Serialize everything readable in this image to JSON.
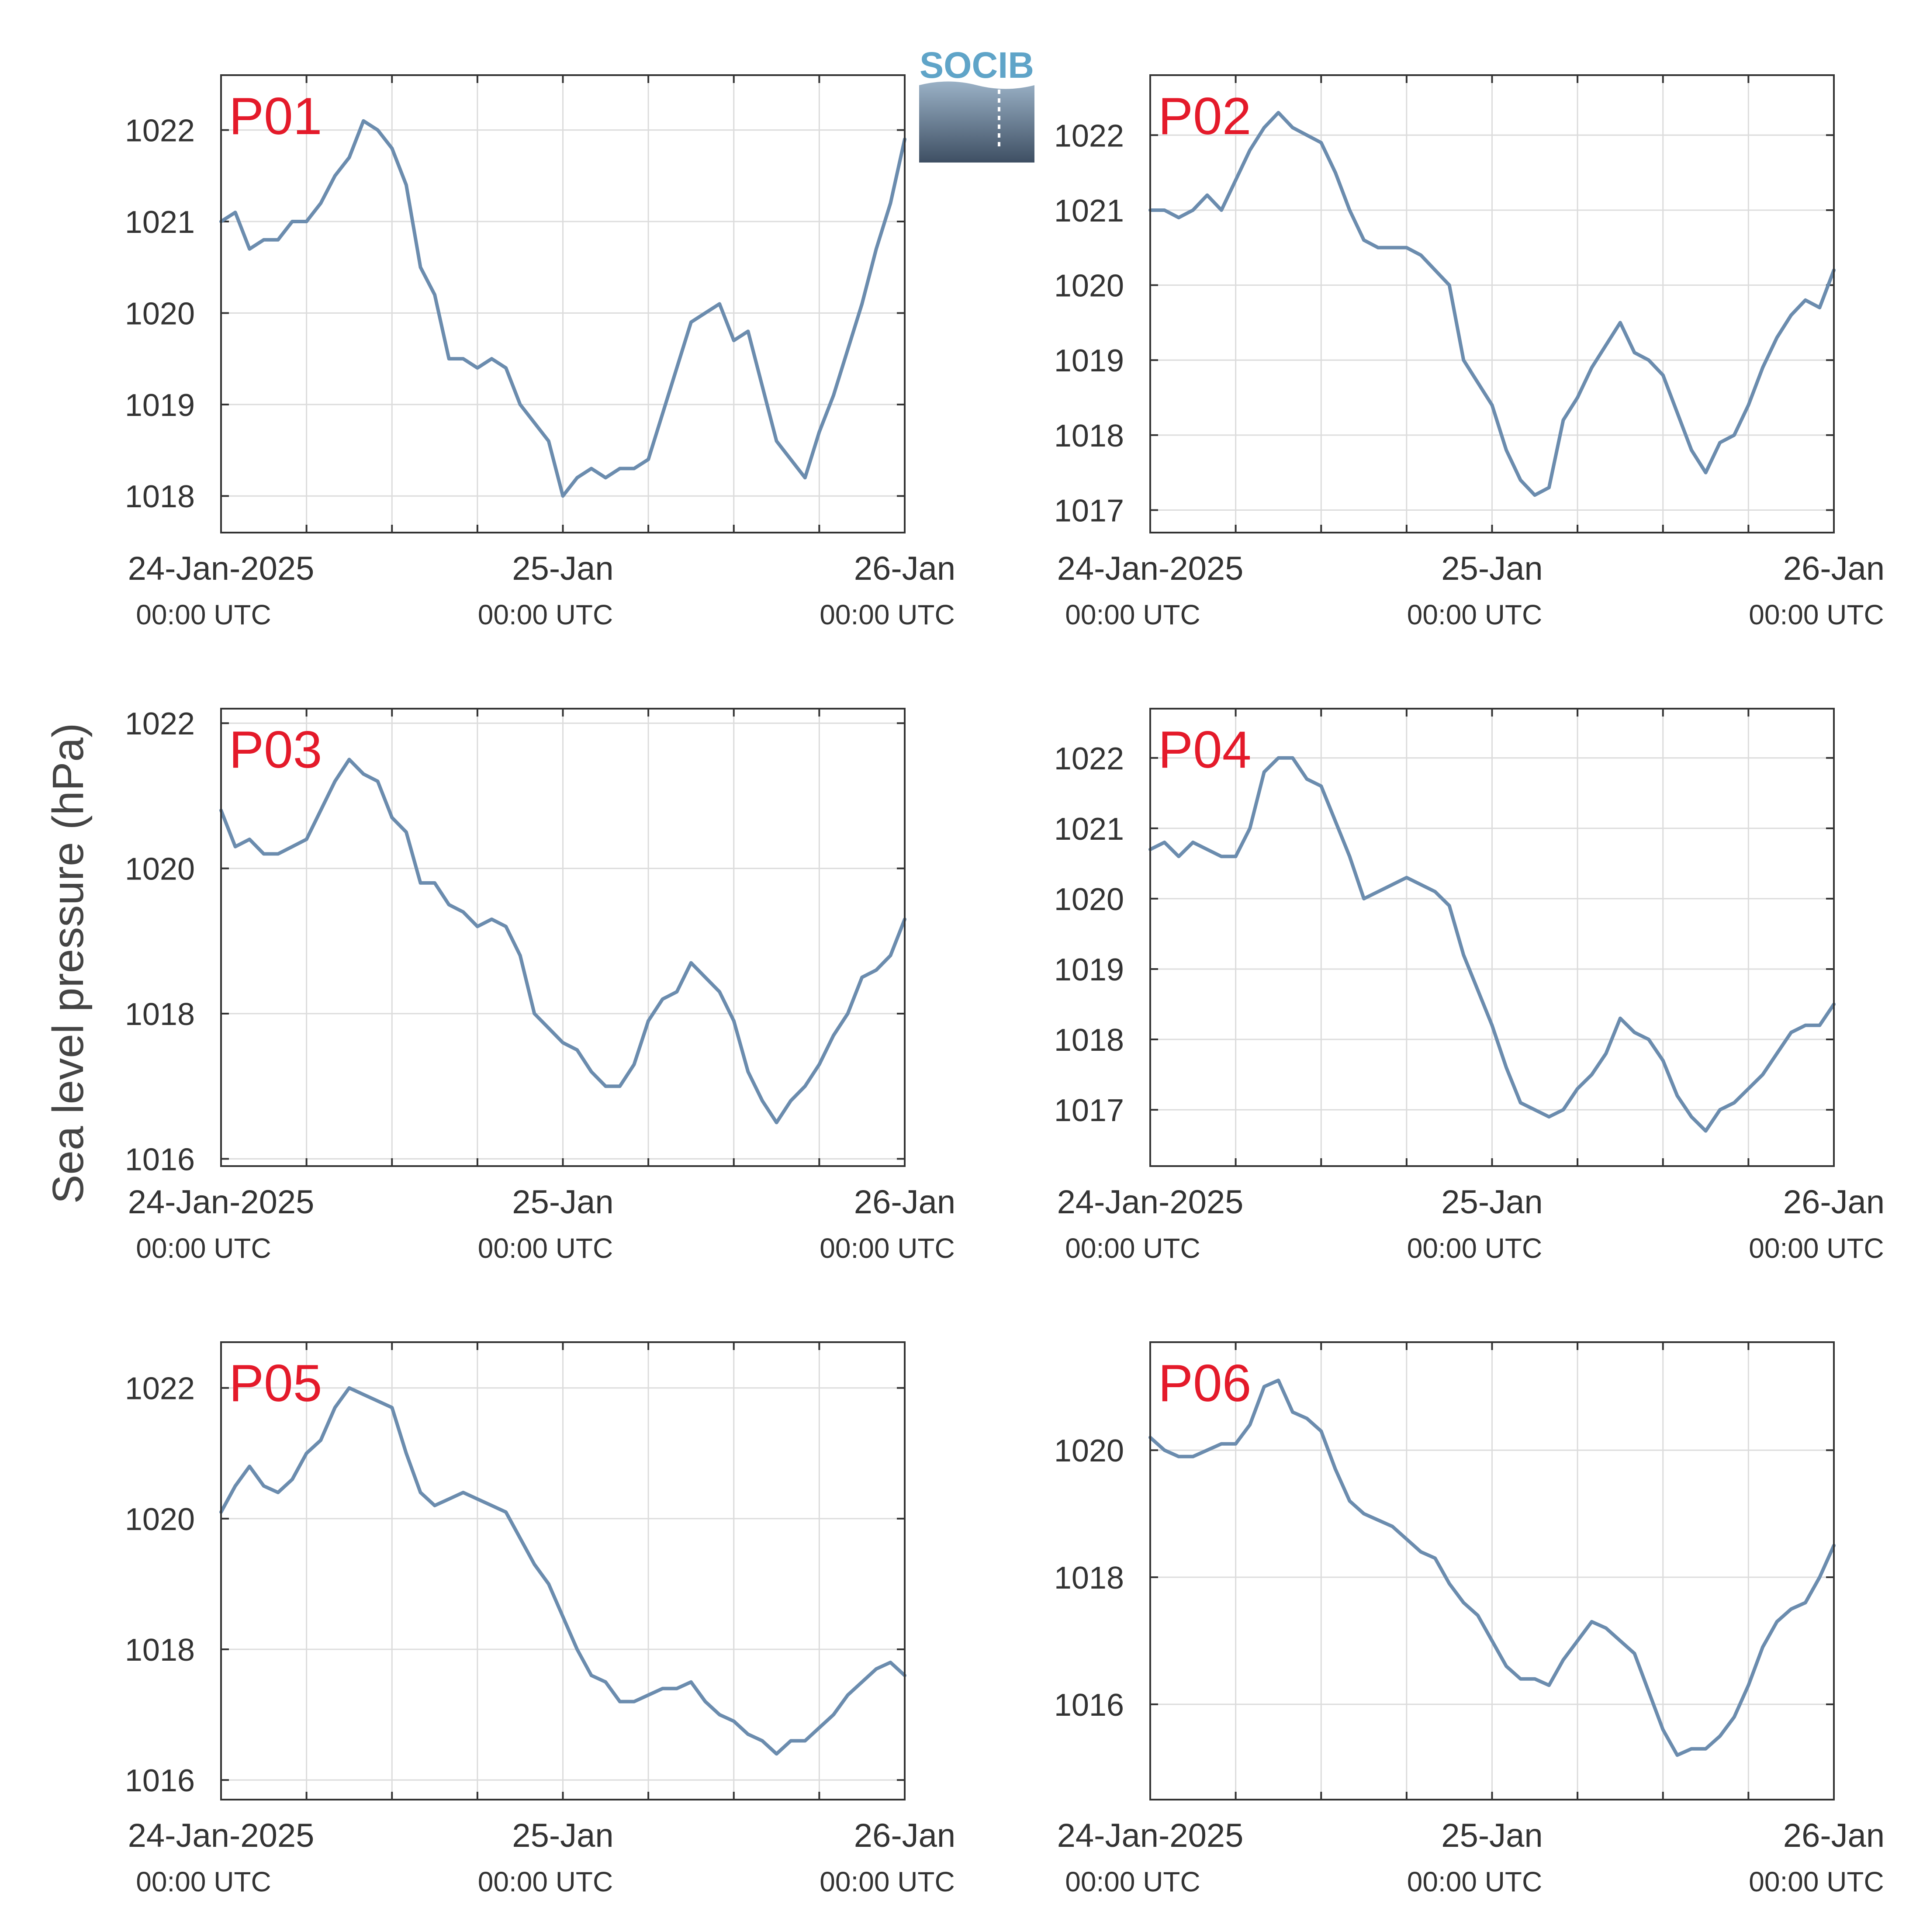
{
  "figure": {
    "ylabel": "Sea level pressure (hPa)",
    "logo_text": "SOCIB",
    "line_color": "#6b8cae",
    "title_color": "#e41a2a",
    "x_tick_dates": [
      "24-Jan-2025",
      "25-Jan",
      "26-Jan"
    ],
    "x_tick_times": [
      "00:00 UTC",
      "00:00 UTC",
      "00:00 UTC"
    ]
  },
  "chart_data": [
    {
      "type": "line",
      "title": "P01",
      "xlabel": "",
      "ylabel": "Sea level pressure (hPa)",
      "x_unit": "hours since 24-Jan-2025 00:00 UTC",
      "xlim": [
        0,
        48
      ],
      "ylim": [
        1017.6,
        1022.6
      ],
      "yticks": [
        1018,
        1019,
        1020,
        1021,
        1022
      ],
      "x": [
        0,
        1,
        2,
        3,
        4,
        5,
        6,
        7,
        8,
        9,
        10,
        11,
        12,
        13,
        14,
        15,
        16,
        17,
        18,
        19,
        20,
        21,
        22,
        23,
        24,
        25,
        26,
        27,
        28,
        29,
        30,
        31,
        32,
        33,
        34,
        35,
        36,
        37,
        38,
        39,
        40,
        41,
        42,
        43,
        44,
        45,
        46,
        47,
        48
      ],
      "y": [
        1021.0,
        1021.1,
        1020.7,
        1020.8,
        1020.8,
        1021.0,
        1021.0,
        1021.2,
        1021.5,
        1021.7,
        1022.1,
        1022.0,
        1021.8,
        1021.4,
        1020.5,
        1020.2,
        1019.5,
        1019.5,
        1019.4,
        1019.5,
        1019.4,
        1019.0,
        1018.8,
        1018.6,
        1018.0,
        1018.2,
        1018.3,
        1018.2,
        1018.3,
        1018.3,
        1018.4,
        1018.9,
        1019.4,
        1019.9,
        1020.0,
        1020.1,
        1019.7,
        1019.8,
        1019.2,
        1018.6,
        1018.4,
        1018.2,
        1018.7,
        1019.1,
        1019.6,
        1020.1,
        1020.7,
        1021.2,
        1021.9
      ],
      "grid": true,
      "legend": "none"
    },
    {
      "type": "line",
      "title": "P02",
      "xlabel": "",
      "ylabel": "",
      "x_unit": "hours since 24-Jan-2025 00:00 UTC",
      "xlim": [
        0,
        48
      ],
      "ylim": [
        1016.7,
        1022.8
      ],
      "yticks": [
        1017,
        1018,
        1019,
        1020,
        1021,
        1022
      ],
      "x": [
        0,
        1,
        2,
        3,
        4,
        5,
        6,
        7,
        8,
        9,
        10,
        11,
        12,
        13,
        14,
        15,
        16,
        17,
        18,
        19,
        20,
        21,
        22,
        23,
        24,
        25,
        26,
        27,
        28,
        29,
        30,
        31,
        32,
        33,
        34,
        35,
        36,
        37,
        38,
        39,
        40,
        41,
        42,
        43,
        44,
        45,
        46,
        47,
        48
      ],
      "y": [
        1021.0,
        1021.0,
        1020.9,
        1021.0,
        1021.2,
        1021.0,
        1021.4,
        1021.8,
        1022.1,
        1022.3,
        1022.1,
        1022.0,
        1021.9,
        1021.5,
        1021.0,
        1020.6,
        1020.5,
        1020.5,
        1020.5,
        1020.4,
        1020.2,
        1020.0,
        1019.0,
        1018.7,
        1018.4,
        1017.8,
        1017.4,
        1017.2,
        1017.3,
        1018.2,
        1018.5,
        1018.9,
        1019.2,
        1019.5,
        1019.1,
        1019.0,
        1018.8,
        1018.3,
        1017.8,
        1017.5,
        1017.9,
        1018.0,
        1018.4,
        1018.9,
        1019.3,
        1019.6,
        1019.8,
        1019.7,
        1020.2
      ],
      "grid": true,
      "legend": "none"
    },
    {
      "type": "line",
      "title": "P03",
      "xlabel": "",
      "ylabel": "",
      "x_unit": "hours since 24-Jan-2025 00:00 UTC",
      "xlim": [
        0,
        48
      ],
      "ylim": [
        1015.9,
        1022.2
      ],
      "yticks": [
        1016,
        1018,
        1020,
        1022
      ],
      "x": [
        0,
        1,
        2,
        3,
        4,
        5,
        6,
        7,
        8,
        9,
        10,
        11,
        12,
        13,
        14,
        15,
        16,
        17,
        18,
        19,
        20,
        21,
        22,
        23,
        24,
        25,
        26,
        27,
        28,
        29,
        30,
        31,
        32,
        33,
        34,
        35,
        36,
        37,
        38,
        39,
        40,
        41,
        42,
        43,
        44,
        45,
        46,
        47,
        48
      ],
      "y": [
        1020.8,
        1020.3,
        1020.4,
        1020.2,
        1020.2,
        1020.3,
        1020.4,
        1020.8,
        1021.2,
        1021.5,
        1021.3,
        1021.2,
        1020.7,
        1020.5,
        1019.8,
        1019.8,
        1019.5,
        1019.4,
        1019.2,
        1019.3,
        1019.2,
        1018.8,
        1018.0,
        1017.8,
        1017.6,
        1017.5,
        1017.2,
        1017.0,
        1017.0,
        1017.3,
        1017.9,
        1018.2,
        1018.3,
        1018.7,
        1018.5,
        1018.3,
        1017.9,
        1017.2,
        1016.8,
        1016.5,
        1016.8,
        1017.0,
        1017.3,
        1017.7,
        1018.0,
        1018.5,
        1018.6,
        1018.8,
        1019.3
      ],
      "grid": true,
      "legend": "none"
    },
    {
      "type": "line",
      "title": "P04",
      "xlabel": "",
      "ylabel": "",
      "x_unit": "hours since 24-Jan-2025 00:00 UTC",
      "xlim": [
        0,
        48
      ],
      "ylim": [
        1016.2,
        1022.7
      ],
      "yticks": [
        1017,
        1018,
        1019,
        1020,
        1021,
        1022
      ],
      "x": [
        0,
        1,
        2,
        3,
        4,
        5,
        6,
        7,
        8,
        9,
        10,
        11,
        12,
        13,
        14,
        15,
        16,
        17,
        18,
        19,
        20,
        21,
        22,
        23,
        24,
        25,
        26,
        27,
        28,
        29,
        30,
        31,
        32,
        33,
        34,
        35,
        36,
        37,
        38,
        39,
        40,
        41,
        42,
        43,
        44,
        45,
        46,
        47,
        48
      ],
      "y": [
        1020.7,
        1020.8,
        1020.6,
        1020.8,
        1020.7,
        1020.6,
        1020.6,
        1021.0,
        1021.8,
        1022.0,
        1022.0,
        1021.7,
        1021.6,
        1021.1,
        1020.6,
        1020.0,
        1020.1,
        1020.2,
        1020.3,
        1020.2,
        1020.1,
        1019.9,
        1019.2,
        1018.7,
        1018.2,
        1017.6,
        1017.1,
        1017.0,
        1016.9,
        1017.0,
        1017.3,
        1017.5,
        1017.8,
        1018.3,
        1018.1,
        1018.0,
        1017.7,
        1017.2,
        1016.9,
        1016.7,
        1017.0,
        1017.1,
        1017.3,
        1017.5,
        1017.8,
        1018.1,
        1018.2,
        1018.2,
        1018.5
      ],
      "grid": true,
      "legend": "none"
    },
    {
      "type": "line",
      "title": "P05",
      "xlabel": "",
      "ylabel": "",
      "x_unit": "hours since 24-Jan-2025 00:00 UTC",
      "xlim": [
        0,
        48
      ],
      "ylim": [
        1015.7,
        1022.7
      ],
      "yticks": [
        1016,
        1018,
        1020,
        1022
      ],
      "x": [
        0,
        1,
        2,
        3,
        4,
        5,
        6,
        7,
        8,
        9,
        10,
        11,
        12,
        13,
        14,
        15,
        16,
        17,
        18,
        19,
        20,
        21,
        22,
        23,
        24,
        25,
        26,
        27,
        28,
        29,
        30,
        31,
        32,
        33,
        34,
        35,
        36,
        37,
        38,
        39,
        40,
        41,
        42,
        43,
        44,
        45,
        46,
        47,
        48
      ],
      "y": [
        1020.1,
        1020.5,
        1020.8,
        1020.5,
        1020.4,
        1020.6,
        1021.0,
        1021.2,
        1021.7,
        1022.0,
        1021.9,
        1021.8,
        1021.7,
        1021.0,
        1020.4,
        1020.2,
        1020.3,
        1020.4,
        1020.3,
        1020.2,
        1020.1,
        1019.7,
        1019.3,
        1019.0,
        1018.5,
        1018.0,
        1017.6,
        1017.5,
        1017.2,
        1017.2,
        1017.3,
        1017.4,
        1017.4,
        1017.5,
        1017.2,
        1017.0,
        1016.9,
        1016.7,
        1016.6,
        1016.4,
        1016.6,
        1016.6,
        1016.8,
        1017.0,
        1017.3,
        1017.5,
        1017.7,
        1017.8,
        1017.6
      ],
      "grid": true,
      "legend": "none"
    },
    {
      "type": "line",
      "title": "P06",
      "xlabel": "",
      "ylabel": "",
      "x_unit": "hours since 24-Jan-2025 00:00 UTC",
      "xlim": [
        0,
        48
      ],
      "ylim": [
        1014.5,
        1021.7
      ],
      "yticks": [
        1016,
        1018,
        1020
      ],
      "x": [
        0,
        1,
        2,
        3,
        4,
        5,
        6,
        7,
        8,
        9,
        10,
        11,
        12,
        13,
        14,
        15,
        16,
        17,
        18,
        19,
        20,
        21,
        22,
        23,
        24,
        25,
        26,
        27,
        28,
        29,
        30,
        31,
        32,
        33,
        34,
        35,
        36,
        37,
        38,
        39,
        40,
        41,
        42,
        43,
        44,
        45,
        46,
        47,
        48
      ],
      "y": [
        1020.2,
        1020.0,
        1019.9,
        1019.9,
        1020.0,
        1020.1,
        1020.1,
        1020.4,
        1021.0,
        1021.1,
        1020.6,
        1020.5,
        1020.3,
        1019.7,
        1019.2,
        1019.0,
        1018.9,
        1018.8,
        1018.6,
        1018.4,
        1018.3,
        1017.9,
        1017.6,
        1017.4,
        1017.0,
        1016.6,
        1016.4,
        1016.4,
        1016.3,
        1016.7,
        1017.0,
        1017.3,
        1017.2,
        1017.0,
        1016.8,
        1016.2,
        1015.6,
        1015.2,
        1015.3,
        1015.3,
        1015.5,
        1015.8,
        1016.3,
        1016.9,
        1017.3,
        1017.5,
        1017.6,
        1018.0,
        1018.5
      ],
      "grid": true,
      "legend": "none"
    }
  ]
}
